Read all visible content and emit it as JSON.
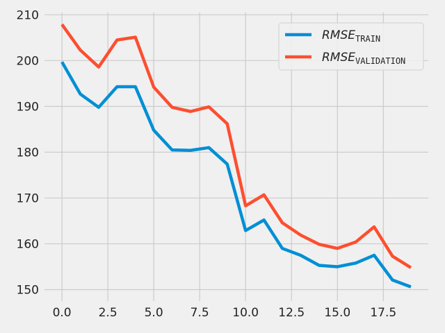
{
  "chart_data": {
    "type": "line",
    "title": "",
    "xlabel": "",
    "ylabel": "",
    "xlim": [
      -0.95,
      19.95
    ],
    "ylim": [
      147.5,
      210.5
    ],
    "xticks": [
      0.0,
      2.5,
      5.0,
      7.5,
      10.0,
      12.5,
      15.0,
      17.5
    ],
    "xtick_labels": [
      "0.0",
      "2.5",
      "5.0",
      "7.5",
      "10.0",
      "12.5",
      "15.0",
      "17.5"
    ],
    "yticks": [
      150,
      160,
      170,
      180,
      190,
      200,
      210
    ],
    "ytick_labels": [
      "150",
      "160",
      "170",
      "180",
      "190",
      "200",
      "210"
    ],
    "grid": true,
    "legend_position": "top-right",
    "background": "#f0f0f0",
    "x": [
      0,
      1,
      2,
      3,
      4,
      5,
      6,
      7,
      8,
      9,
      10,
      11,
      12,
      13,
      14,
      15,
      16,
      17,
      18,
      19
    ],
    "series": [
      {
        "name": "RMSE",
        "subscript": "TRAIN",
        "color": "#008fd5",
        "values": [
          199.7,
          192.7,
          189.8,
          194.3,
          194.3,
          184.8,
          180.5,
          180.4,
          181.0,
          177.4,
          162.9,
          165.2,
          159.0,
          157.5,
          155.3,
          155.0,
          155.8,
          157.5,
          152.1,
          150.6
        ]
      },
      {
        "name": "RMSE",
        "subscript": "VALIDATION",
        "color": "#fc4f30",
        "values": [
          207.9,
          202.3,
          198.6,
          204.5,
          205.1,
          194.2,
          189.8,
          188.9,
          189.9,
          186.2,
          168.3,
          170.7,
          164.6,
          161.9,
          159.9,
          159.0,
          160.4,
          163.7,
          157.3,
          154.8
        ]
      }
    ]
  }
}
